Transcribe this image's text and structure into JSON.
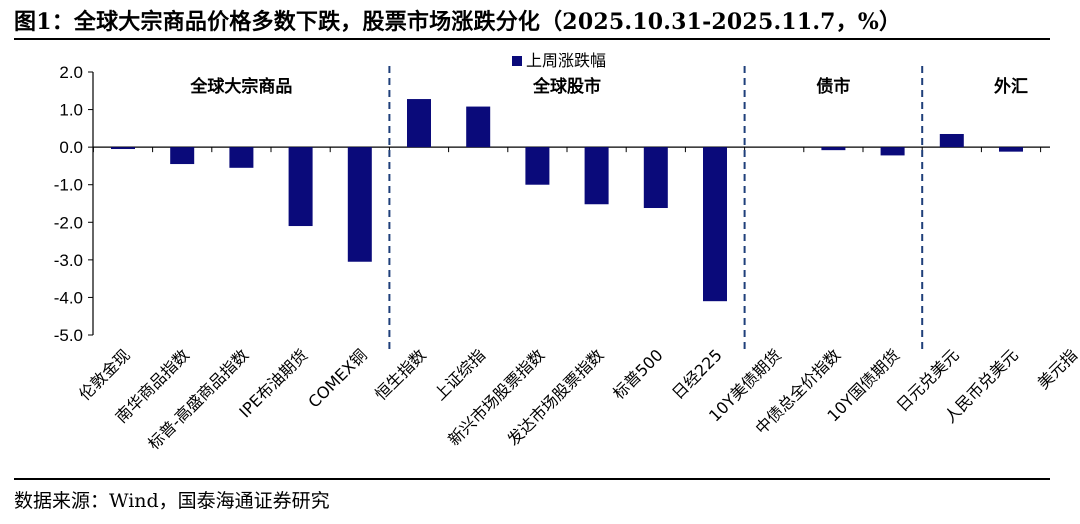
{
  "figure": {
    "title": "图1：全球大宗商品价格多数下跌，股票市场涨跌分化（2025.10.31-2025.11.7，%）",
    "source": "数据来源：Wind，国泰海通证券研究"
  },
  "chart_data": {
    "type": "bar",
    "title": "全球大宗商品价格多数下跌，股票市场涨跌分化（2025.10.31-2025.11.7，%）",
    "xlabel": "",
    "ylabel": "",
    "ylim": [
      -5.0,
      2.0
    ],
    "yticks": [
      "2.0",
      "1.0",
      "0.0",
      "-1.0",
      "-2.0",
      "-3.0",
      "-4.0",
      "-5.0"
    ],
    "legend": "上周涨跌幅",
    "legend_position": "top-center",
    "bar_color": "#0a0a7a",
    "categories": [
      "伦敦金现",
      "南华商品指数",
      "标普-高盛商品指数",
      "IPE布油期货",
      "COMEX铜",
      "恒生指数",
      "上证综指",
      "新兴市场股票指数",
      "发达市场股票指数",
      "标普500",
      "日经225",
      "10Y美债期货",
      "中债总全价指数",
      "10Y国债期货",
      "日元兑美元",
      "人民币兑美元",
      "美元指"
    ],
    "series": [
      {
        "name": "上周涨跌幅",
        "values": [
          -0.05,
          -0.45,
          -0.55,
          -2.1,
          -3.05,
          1.28,
          1.08,
          -1.0,
          -1.52,
          -1.62,
          -4.1,
          0.0,
          -0.08,
          -0.22,
          0.35,
          -0.12,
          0.0
        ]
      }
    ],
    "groups": [
      {
        "label": "全球大宗商品",
        "start": 0,
        "end": 4
      },
      {
        "label": "全球股市",
        "start": 5,
        "end": 10
      },
      {
        "label": "债市",
        "start": 11,
        "end": 13
      },
      {
        "label": "外汇",
        "start": 14,
        "end": 16
      }
    ]
  }
}
